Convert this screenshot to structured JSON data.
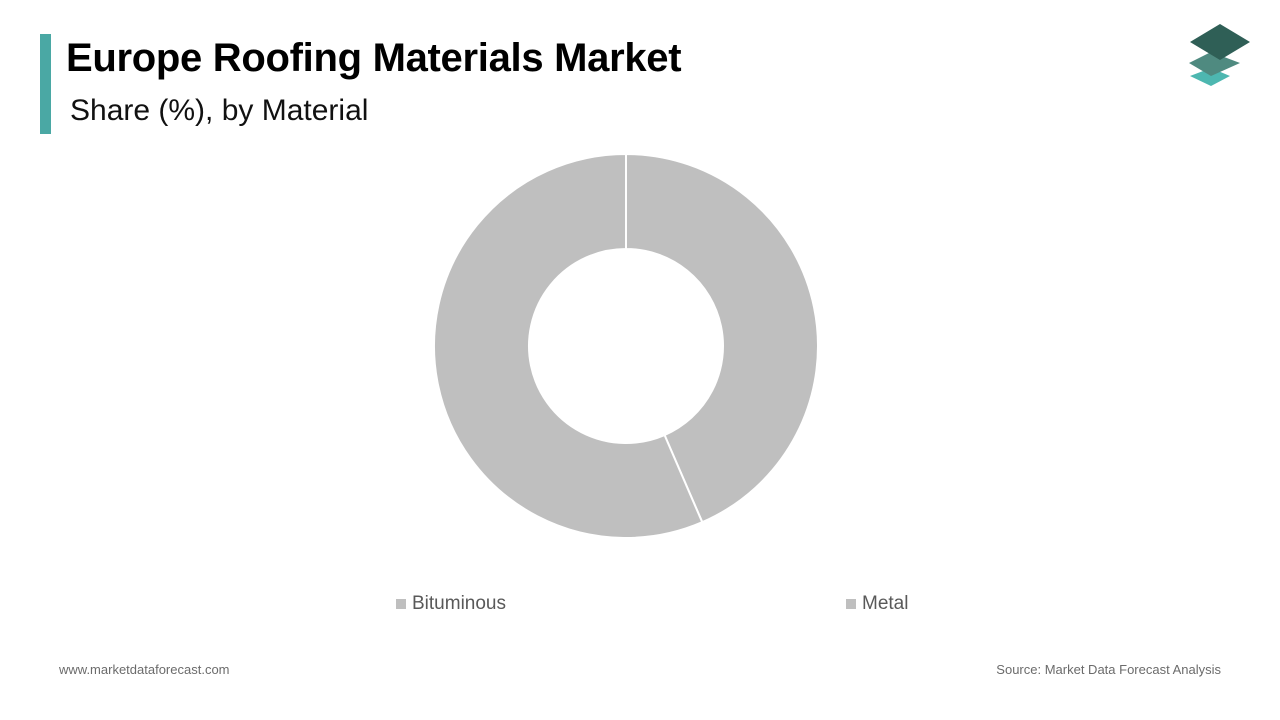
{
  "header": {
    "title": "Europe Roofing Materials Market",
    "subtitle": "Share (%), by Material"
  },
  "colors": {
    "accent": "#4aa8a4",
    "slice": "#bfbfbf",
    "logo_top": "#2f5f56",
    "logo_mid": "#4f8a80",
    "logo_bottom": "#4db7b0"
  },
  "logo": {
    "icon": "stacked-layers-logo-icon"
  },
  "chart_data": {
    "type": "pie",
    "variant": "donut",
    "categories": [
      "Bituminous",
      "Metal"
    ],
    "values": [
      43.5,
      56.5
    ],
    "unit": "%",
    "legend_position": "bottom"
  },
  "footer": {
    "website": "www.marketdataforecast.com",
    "source": "Source: Market Data Forecast Analysis"
  }
}
